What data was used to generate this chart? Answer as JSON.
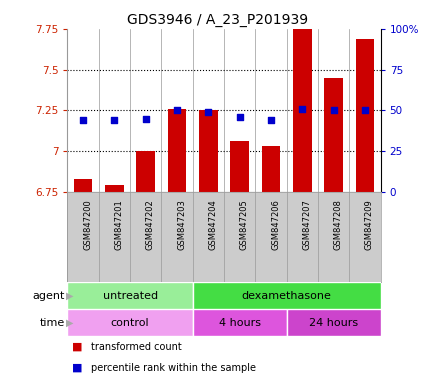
{
  "title": "GDS3946 / A_23_P201939",
  "samples": [
    "GSM847200",
    "GSM847201",
    "GSM847202",
    "GSM847203",
    "GSM847204",
    "GSM847205",
    "GSM847206",
    "GSM847207",
    "GSM847208",
    "GSM847209"
  ],
  "transformed_count": [
    6.83,
    6.79,
    7.0,
    7.26,
    7.25,
    7.06,
    7.03,
    7.86,
    7.45,
    7.69
  ],
  "percentile_rank": [
    44,
    44,
    45,
    50,
    49,
    46,
    44,
    51,
    50,
    50
  ],
  "ylim": [
    6.75,
    7.75
  ],
  "yticks": [
    6.75,
    7.0,
    7.25,
    7.5,
    7.75
  ],
  "ytick_labels": [
    "6.75",
    "7",
    "7.25",
    "7.5",
    "7.75"
  ],
  "y2lim": [
    0,
    100
  ],
  "y2ticks": [
    0,
    25,
    50,
    75,
    100
  ],
  "y2tick_labels": [
    "0",
    "25",
    "50",
    "75",
    "100%"
  ],
  "bar_color": "#cc0000",
  "dot_color": "#0000cc",
  "bar_width": 0.6,
  "agent_groups": [
    {
      "label": "untreated",
      "start": 0,
      "end": 3,
      "color": "#99ee99"
    },
    {
      "label": "dexamethasone",
      "start": 4,
      "end": 9,
      "color": "#44dd44"
    }
  ],
  "time_groups": [
    {
      "label": "control",
      "start": 0,
      "end": 3,
      "color": "#f0a0f0"
    },
    {
      "label": "4 hours",
      "start": 4,
      "end": 6,
      "color": "#dd55dd"
    },
    {
      "label": "24 hours",
      "start": 7,
      "end": 9,
      "color": "#cc44cc"
    }
  ],
  "legend_items": [
    {
      "label": "transformed count",
      "color": "#cc0000"
    },
    {
      "label": "percentile rank within the sample",
      "color": "#0000cc"
    }
  ],
  "sample_bg_color": "#cccccc",
  "label_arrow_color": "#aaaaaa"
}
